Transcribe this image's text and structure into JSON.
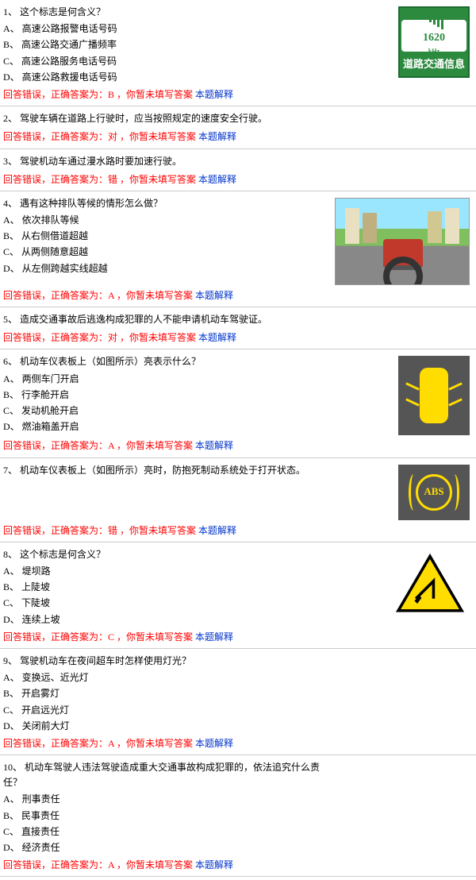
{
  "feedback_prefix": "回答错误，正确答案为：",
  "feedback_mid": " ，你暂未填写答案 ",
  "feedback_link": "本题解释",
  "questions": [
    {
      "num": "1、",
      "text": "这个标志是何含义？",
      "options": [
        "A、 高速公路报警电话号码",
        "B、 高速公路交通广播频率",
        "C、 高速公路服务电话号码",
        "D、 高速公路救援电话号码"
      ],
      "answer": "B",
      "image": "sign1",
      "sign1_text": "道路交通信息",
      "sign1_freq": "1620",
      "sign1_unit": "kHz"
    },
    {
      "num": "2、",
      "text": "驾驶车辆在道路上行驶时，应当按照规定的速度安全行驶。",
      "options": [],
      "answer": "对",
      "image": null
    },
    {
      "num": "3、",
      "text": "驾驶机动车通过漫水路时要加速行驶。",
      "options": [],
      "answer": "错",
      "image": null
    },
    {
      "num": "4、",
      "text": "遇有这种排队等候的情形怎么做？",
      "options": [
        "A、 依次排队等候",
        "B、 从右侧借道超越",
        "C、 从两侧随意超越",
        "D、 从左侧跨越实线超越"
      ],
      "answer": "A",
      "image": "road"
    },
    {
      "num": "5、",
      "text": "造成交通事故后逃逸构成犯罪的人不能申请机动车驾驶证。",
      "options": [],
      "answer": "对",
      "image": null
    },
    {
      "num": "6、",
      "text": "机动车仪表板上（如图所示）亮表示什么？",
      "options": [
        "A、 两侧车门开启",
        "B、 行李舱开启",
        "C、 发动机舱开启",
        "D、 燃油箱盖开启"
      ],
      "answer": "A",
      "image": "door"
    },
    {
      "num": "7、",
      "text": "机动车仪表板上（如图所示）亮时，防抱死制动系统处于打开状态。",
      "options": [],
      "answer": "错",
      "image": "abs",
      "abs_text": "ABS"
    },
    {
      "num": "8、",
      "text": "这个标志是何含义？",
      "options": [
        "A、 堤坝路",
        "B、 上陡坡",
        "C、 下陡坡",
        "D、 连续上坡"
      ],
      "answer": "C",
      "image": "tri"
    },
    {
      "num": "9、",
      "text": "驾驶机动车在夜间超车时怎样使用灯光？",
      "options": [
        "A、 变换远、近光灯",
        "B、 开启雾灯",
        "C、 开启远光灯",
        "D、 关闭前大灯"
      ],
      "answer": "A",
      "image": null
    },
    {
      "num": "10、",
      "text": "机动车驾驶人违法驾驶造成重大交通事故构成犯罪的，依法追究什么责任？",
      "options": [
        "A、 刑事责任",
        "B、 民事责任",
        "C、 直接责任",
        "D、 经济责任"
      ],
      "answer": "A",
      "image": null
    }
  ]
}
